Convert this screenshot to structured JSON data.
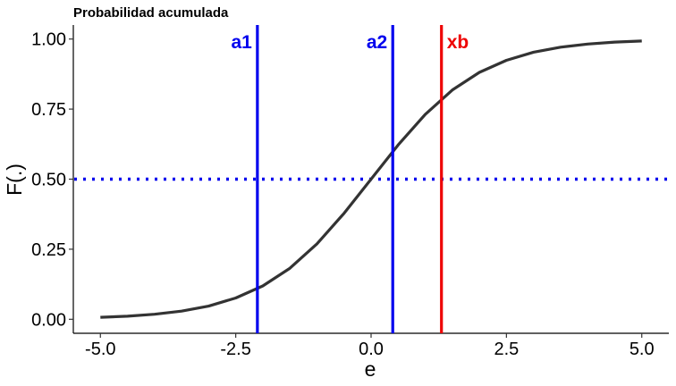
{
  "chart_data": {
    "type": "line",
    "title": "Probabilidad acumulada",
    "xlabel": "e",
    "ylabel": "F(.)",
    "xlim": [
      -5.5,
      5.5
    ],
    "ylim": [
      -0.05,
      1.05
    ],
    "x_ticks": [
      {
        "value": -5.0,
        "label": "-5.0"
      },
      {
        "value": -2.5,
        "label": "-2.5"
      },
      {
        "value": 0.0,
        "label": "0.0"
      },
      {
        "value": 2.5,
        "label": "2.5"
      },
      {
        "value": 5.0,
        "label": "5.0"
      }
    ],
    "y_ticks": [
      {
        "value": 0.0,
        "label": "0.00"
      },
      {
        "value": 0.25,
        "label": "0.25"
      },
      {
        "value": 0.5,
        "label": "0.50"
      },
      {
        "value": 0.75,
        "label": "0.75"
      },
      {
        "value": 1.0,
        "label": "1.00"
      }
    ],
    "grid": false,
    "series": [
      {
        "color": "#333333",
        "x": [
          -5.0,
          -4.5,
          -4.0,
          -3.5,
          -3.0,
          -2.5,
          -2.0,
          -1.5,
          -1.0,
          -0.5,
          0.0,
          0.5,
          1.0,
          1.5,
          2.0,
          2.5,
          3.0,
          3.5,
          4.0,
          4.5,
          5.0
        ],
        "y": [
          0.007,
          0.011,
          0.018,
          0.029,
          0.047,
          0.076,
          0.119,
          0.182,
          0.269,
          0.378,
          0.5,
          0.622,
          0.731,
          0.818,
          0.881,
          0.924,
          0.953,
          0.971,
          0.982,
          0.989,
          0.993
        ]
      }
    ],
    "hlines": [
      {
        "y": 0.5,
        "color": "#0000ee",
        "style": "dotted"
      }
    ],
    "vlines": [
      {
        "x": -2.1,
        "label": "a1",
        "color": "#0000ee"
      },
      {
        "x": 0.4,
        "label": "a2",
        "color": "#0000ee"
      },
      {
        "x": 1.3,
        "label": "xb",
        "color": "#ee0000"
      }
    ]
  }
}
